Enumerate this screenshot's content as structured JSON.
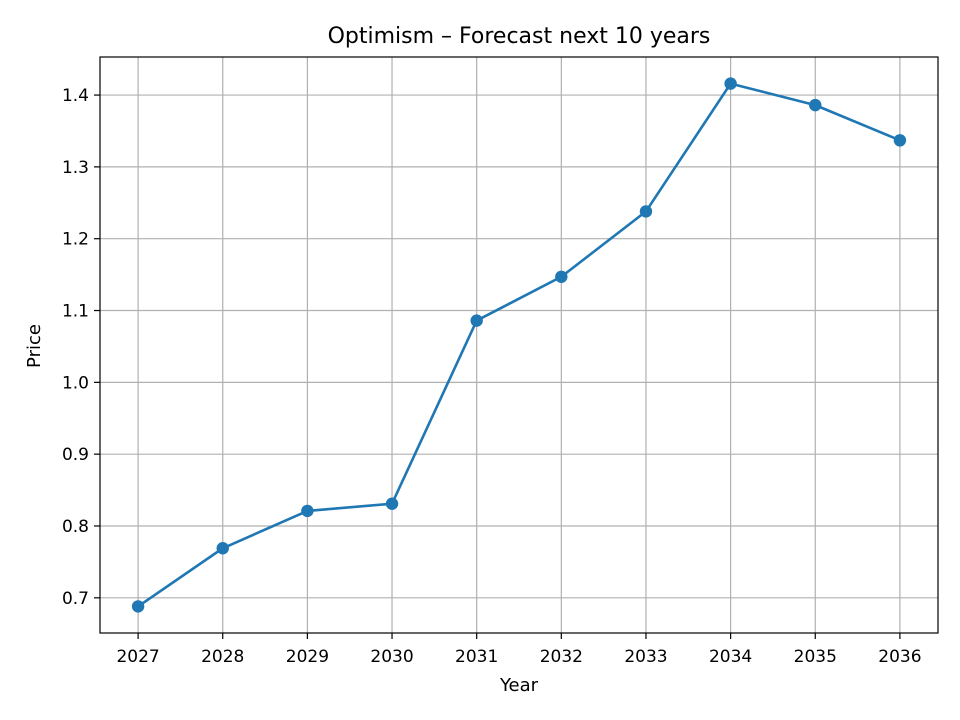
{
  "chart_data": {
    "type": "line",
    "title": "Optimism – Forecast next 10 years",
    "xlabel": "Year",
    "ylabel": "Price",
    "x": [
      2027,
      2028,
      2029,
      2030,
      2031,
      2032,
      2033,
      2034,
      2035,
      2036
    ],
    "series": [
      {
        "values": [
          0.688,
          0.769,
          0.821,
          0.831,
          1.086,
          1.147,
          1.238,
          1.416,
          1.386,
          1.337
        ],
        "color": "#1f77b4",
        "marker": "circle"
      }
    ],
    "xlim": [
      2026.55,
      2036.45
    ],
    "ylim": [
      0.651,
      1.453
    ],
    "xticks": [
      "2027",
      "2028",
      "2029",
      "2030",
      "2031",
      "2032",
      "2033",
      "2034",
      "2035",
      "2036"
    ],
    "yticks": [
      "0.7",
      "0.8",
      "0.9",
      "1.0",
      "1.1",
      "1.2",
      "1.3",
      "1.4"
    ],
    "ytick_values": [
      0.7,
      0.8,
      0.9,
      1.0,
      1.1,
      1.2,
      1.3,
      1.4
    ],
    "grid": true,
    "legend": "none"
  }
}
